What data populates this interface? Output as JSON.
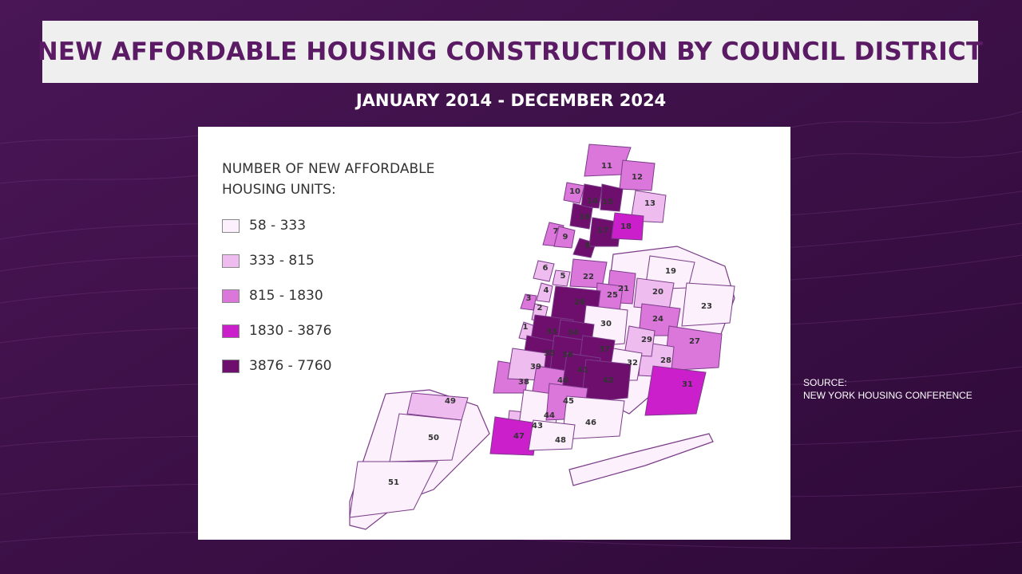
{
  "header": {
    "title": "NEW AFFORDABLE HOUSING CONSTRUCTION BY COUNCIL DISTRICT",
    "subtitle": "JANUARY 2014 - DECEMBER 2024"
  },
  "legend": {
    "title": "NUMBER OF NEW AFFORDABLE HOUSING UNITS:",
    "bins": [
      {
        "label": "58 - 333",
        "color": "#fbf0fb"
      },
      {
        "label": "333 - 815",
        "color": "#efbcef"
      },
      {
        "label": "815 - 1830",
        "color": "#db77db"
      },
      {
        "label": "1830 - 3876",
        "color": "#cc1fcc"
      },
      {
        "label": "3876 - 7760",
        "color": "#6e0f6e"
      }
    ]
  },
  "source": {
    "line1": "SOURCE:",
    "line2": "NEW YORK HOUSING CONFERENCE"
  },
  "districts": [
    {
      "id": "1",
      "bin": 2
    },
    {
      "id": "2",
      "bin": 2
    },
    {
      "id": "3",
      "bin": 3
    },
    {
      "id": "4",
      "bin": 2
    },
    {
      "id": "5",
      "bin": 2
    },
    {
      "id": "6",
      "bin": 2
    },
    {
      "id": "7",
      "bin": 3
    },
    {
      "id": "8",
      "bin": 5
    },
    {
      "id": "9",
      "bin": 3
    },
    {
      "id": "10",
      "bin": 3
    },
    {
      "id": "11",
      "bin": 3
    },
    {
      "id": "12",
      "bin": 3
    },
    {
      "id": "13",
      "bin": 2
    },
    {
      "id": "14",
      "bin": 5
    },
    {
      "id": "15",
      "bin": 5
    },
    {
      "id": "16",
      "bin": 5
    },
    {
      "id": "17",
      "bin": 5
    },
    {
      "id": "18",
      "bin": 4
    },
    {
      "id": "19",
      "bin": 1
    },
    {
      "id": "20",
      "bin": 2
    },
    {
      "id": "21",
      "bin": 3
    },
    {
      "id": "22",
      "bin": 3
    },
    {
      "id": "23",
      "bin": 1
    },
    {
      "id": "24",
      "bin": 3
    },
    {
      "id": "25",
      "bin": 3
    },
    {
      "id": "26",
      "bin": 5
    },
    {
      "id": "27",
      "bin": 3
    },
    {
      "id": "28",
      "bin": 2
    },
    {
      "id": "29",
      "bin": 2
    },
    {
      "id": "30",
      "bin": 1
    },
    {
      "id": "31",
      "bin": 4
    },
    {
      "id": "32",
      "bin": 1
    },
    {
      "id": "33",
      "bin": 5
    },
    {
      "id": "34",
      "bin": 5
    },
    {
      "id": "35",
      "bin": 5
    },
    {
      "id": "36",
      "bin": 5
    },
    {
      "id": "37",
      "bin": 5
    },
    {
      "id": "38",
      "bin": 3
    },
    {
      "id": "39",
      "bin": 2
    },
    {
      "id": "40",
      "bin": 3
    },
    {
      "id": "41",
      "bin": 5
    },
    {
      "id": "42",
      "bin": 5
    },
    {
      "id": "43",
      "bin": 2
    },
    {
      "id": "44",
      "bin": 1
    },
    {
      "id": "45",
      "bin": 3
    },
    {
      "id": "46",
      "bin": 1
    },
    {
      "id": "47",
      "bin": 4
    },
    {
      "id": "48",
      "bin": 1
    },
    {
      "id": "49",
      "bin": 2
    },
    {
      "id": "50",
      "bin": 1
    },
    {
      "id": "51",
      "bin": 1
    }
  ]
}
